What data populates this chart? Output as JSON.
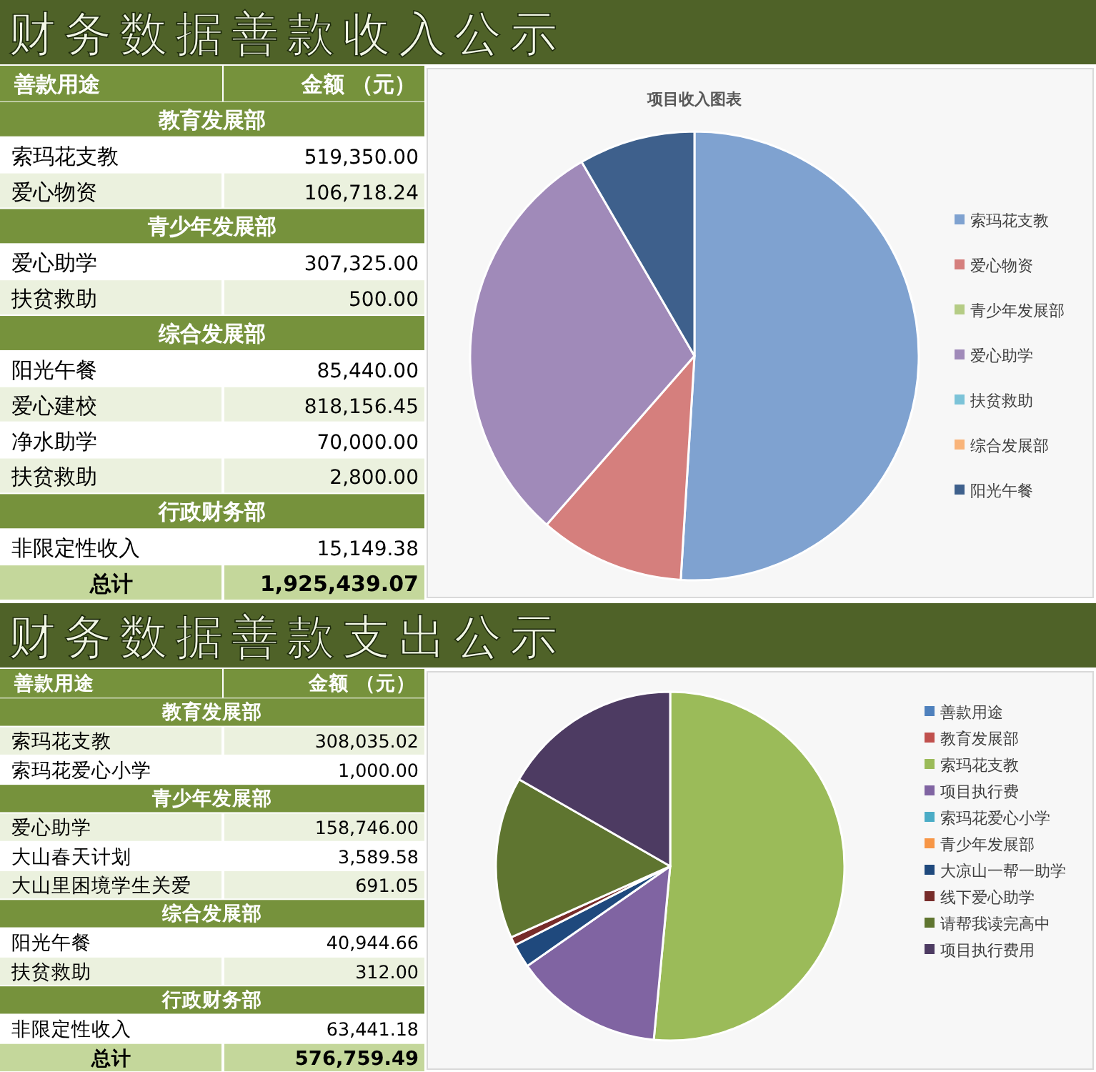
{
  "chart_data": [
    {
      "type": "other",
      "title": "财务数据善款收入公示",
      "xlabel": "善款用途",
      "ylabel": "金额 （元）",
      "categories": [
        "教育发展部",
        "索玛花支教",
        "爱心物资",
        "青少年发展部",
        "爱心助学",
        "扶贫救助",
        "综合发展部",
        "阳光午餐",
        "爱心建校",
        "净水助学",
        "扶贫救助",
        "行政财务部",
        "非限定性收入",
        "总计"
      ],
      "values": [
        null,
        519350.0,
        106718.24,
        null,
        307325.0,
        500.0,
        null,
        85440.0,
        818156.45,
        70000.0,
        2800.0,
        null,
        15149.38,
        1925439.07
      ],
      "value_labels": [
        null,
        "519,350.00",
        "106,718.24",
        null,
        "307,325.00",
        "500.00",
        null,
        "85,440.00",
        "818,156.45",
        "70,000.00",
        "2,800.00",
        null,
        "15,149.38",
        "1,925,439.07"
      ]
    },
    {
      "type": "pie",
      "title": "项目收入图表",
      "legend": "right",
      "categories": [
        "索玛花支教",
        "爱心物资",
        "青少年发展部",
        "爱心助学",
        "扶贫救助",
        "综合发展部",
        "阳光午餐"
      ],
      "values": [
        50.95,
        10.47,
        0,
        30.15,
        null,
        0,
        8.38
      ],
      "colors": [
        "#7fa2d0",
        "#d57f7d",
        "#b5cc85",
        "#a08ab9",
        "#7cc3d8",
        "#f9b47a",
        "#3e608c"
      ]
    },
    {
      "type": "other",
      "title": "财务数据善款支出公示",
      "xlabel": "善款用途",
      "ylabel": "金额 （元）",
      "categories": [
        "教育发展部",
        "索玛花支教",
        "索玛花爱心小学",
        "青少年发展部",
        "爱心助学",
        "大山春天计划",
        "大山里困境学生关爱",
        "综合发展部",
        "阳光午餐",
        "扶贫救助",
        "行政财务部",
        "非限定性收入",
        "总计"
      ],
      "values": [
        null,
        308035.02,
        1000.0,
        null,
        158746.0,
        3589.58,
        691.05,
        null,
        40944.66,
        312.0,
        null,
        63441.18,
        576759.49
      ],
      "value_labels": [
        null,
        "308,035.02",
        "1,000.00",
        null,
        "158,746.00",
        "3,589.58",
        "691.05",
        null,
        "40,944.66",
        "312.00",
        null,
        "63,441.18",
        "576,759.49"
      ]
    },
    {
      "type": "pie",
      "legend": "right",
      "categories": [
        "善款用途",
        "教育发展部",
        "索玛花支教",
        "项目执行费",
        "索玛花爱心小学",
        "青少年发展部",
        "大凉山一帮一助学",
        "线下爱心助学",
        "请帮我读完高中",
        "项目执行费用"
      ],
      "values": [
        0,
        0,
        51.5,
        13.8,
        0,
        0,
        2.2,
        0.8,
        15,
        16.7
      ],
      "colors": [
        "#4f81bd",
        "#c0504d",
        "#9bbb59",
        "#8064a2",
        "#4bacc6",
        "#f79646",
        "#1f497d",
        "#772c2a",
        "#5f7530",
        "#4d3b62"
      ]
    }
  ]
}
